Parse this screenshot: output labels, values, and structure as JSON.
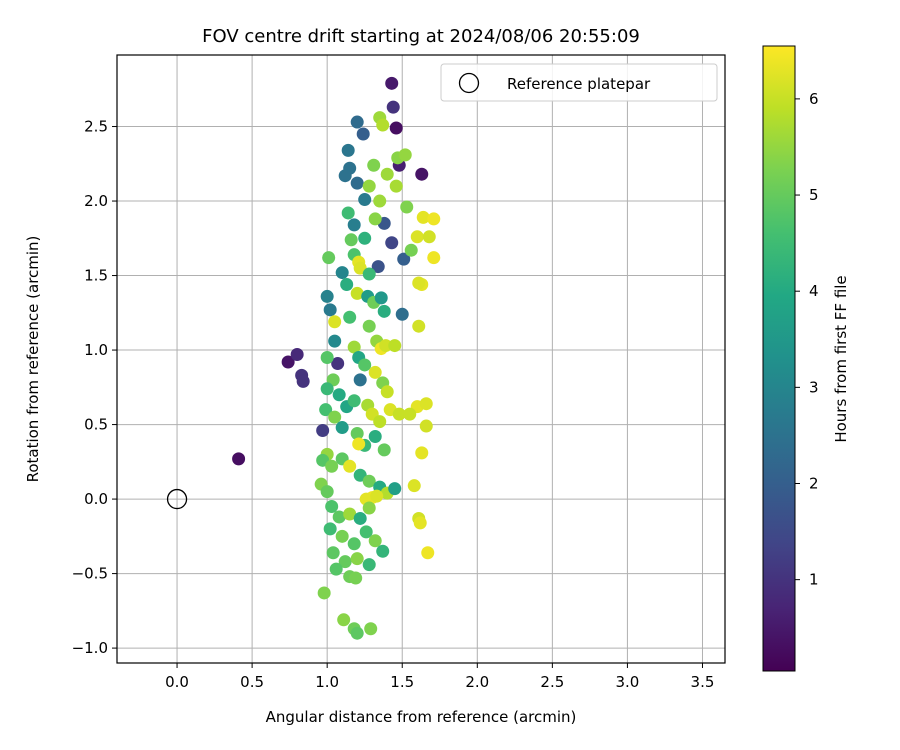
{
  "chart_data": {
    "type": "scatter",
    "title": "FOV centre drift starting at 2024/08/06 20:55:09",
    "xlabel": "Angular distance from reference (arcmin)",
    "ylabel": "Rotation from reference (arcmin)",
    "xlim": [
      -0.4,
      3.65
    ],
    "ylim": [
      -1.1,
      2.98
    ],
    "xticks": [
      0.0,
      0.5,
      1.0,
      1.5,
      2.0,
      2.5,
      3.0,
      3.5
    ],
    "yticks": [
      -1.0,
      -0.5,
      0.0,
      0.5,
      1.0,
      1.5,
      2.0,
      2.5
    ],
    "x_tick_labels": [
      "0.0",
      "0.5",
      "1.0",
      "1.5",
      "2.0",
      "2.5",
      "3.0",
      "3.5"
    ],
    "y_tick_labels": [
      "−1.0",
      "−0.5",
      "0.0",
      "0.5",
      "1.0",
      "1.5",
      "2.0",
      "2.5"
    ],
    "grid": true,
    "legend": {
      "position": "upper-right",
      "entries": [
        "Reference platepar"
      ]
    },
    "reference_point": {
      "x": 0.0,
      "y": 0.0
    },
    "colorbar": {
      "label": "Hours from first FF file",
      "range": [
        0.05,
        6.55
      ],
      "ticks": [
        1,
        2,
        3,
        4,
        5,
        6
      ],
      "tick_labels": [
        "1",
        "2",
        "3",
        "4",
        "5",
        "6"
      ],
      "colormap": "viridis"
    },
    "points": [
      [
        0.41,
        0.27,
        0.3
      ],
      [
        0.74,
        0.92,
        0.4
      ],
      [
        0.8,
        0.97,
        0.8
      ],
      [
        0.83,
        0.83,
        1.0
      ],
      [
        0.84,
        0.79,
        1.0
      ],
      [
        0.97,
        0.46,
        1.2
      ],
      [
        1.43,
        2.79,
        0.5
      ],
      [
        1.46,
        2.49,
        0.3
      ],
      [
        1.44,
        2.63,
        1.0
      ],
      [
        1.63,
        2.18,
        0.4
      ],
      [
        1.48,
        2.24,
        0.6
      ],
      [
        1.2,
        2.53,
        2.3
      ],
      [
        1.24,
        2.45,
        2.0
      ],
      [
        1.14,
        2.34,
        2.6
      ],
      [
        1.15,
        2.22,
        2.5
      ],
      [
        1.12,
        2.17,
        2.5
      ],
      [
        1.2,
        2.12,
        2.3
      ],
      [
        1.25,
        2.01,
        2.7
      ],
      [
        1.38,
        1.85,
        1.8
      ],
      [
        1.43,
        1.72,
        1.4
      ],
      [
        1.51,
        1.61,
        2.0
      ],
      [
        1.5,
        1.24,
        2.4
      ],
      [
        1.34,
        1.56,
        1.7
      ],
      [
        1.18,
        1.84,
        2.8
      ],
      [
        1.1,
        1.52,
        3.0
      ],
      [
        1.0,
        1.36,
        2.9
      ],
      [
        1.02,
        1.27,
        2.7
      ],
      [
        1.05,
        1.06,
        3.1
      ],
      [
        1.07,
        0.91,
        1.0
      ],
      [
        1.22,
        0.8,
        2.5
      ],
      [
        1.35,
        2.56,
        5.6
      ],
      [
        1.37,
        2.51,
        5.8
      ],
      [
        1.47,
        2.29,
        5.4
      ],
      [
        1.52,
        2.31,
        5.5
      ],
      [
        1.31,
        2.24,
        5.3
      ],
      [
        1.4,
        2.18,
        5.6
      ],
      [
        1.28,
        2.1,
        5.5
      ],
      [
        1.46,
        2.1,
        5.7
      ],
      [
        1.35,
        2.0,
        5.6
      ],
      [
        1.53,
        1.96,
        5.3
      ],
      [
        1.32,
        1.88,
        5.4
      ],
      [
        1.14,
        1.92,
        4.5
      ],
      [
        1.56,
        1.67,
        5.2
      ],
      [
        1.25,
        1.75,
        4.2
      ],
      [
        1.16,
        1.74,
        5.0
      ],
      [
        1.01,
        1.62,
        5.0
      ],
      [
        1.18,
        1.64,
        4.7
      ],
      [
        1.21,
        1.59,
        6.3
      ],
      [
        1.22,
        1.55,
        6.2
      ],
      [
        1.28,
        1.51,
        4.4
      ],
      [
        1.13,
        1.44,
        4.1
      ],
      [
        1.2,
        1.38,
        6.0
      ],
      [
        1.27,
        1.36,
        3.6
      ],
      [
        1.31,
        1.32,
        5.1
      ],
      [
        1.36,
        1.35,
        3.5
      ],
      [
        1.38,
        1.26,
        4.1
      ],
      [
        1.05,
        1.19,
        6.2
      ],
      [
        1.15,
        1.22,
        4.6
      ],
      [
        1.28,
        1.16,
        5.2
      ],
      [
        1.33,
        1.06,
        5.5
      ],
      [
        1.36,
        1.01,
        6.4
      ],
      [
        1.39,
        1.03,
        6.1
      ],
      [
        1.45,
        1.03,
        5.9
      ],
      [
        1.18,
        1.02,
        5.6
      ],
      [
        1.21,
        0.95,
        3.9
      ],
      [
        1.25,
        0.9,
        4.8
      ],
      [
        1.32,
        0.85,
        6.2
      ],
      [
        1.37,
        0.78,
        5.3
      ],
      [
        1.4,
        0.72,
        6.0
      ],
      [
        1.0,
        0.95,
        4.8
      ],
      [
        1.04,
        0.8,
        5.1
      ],
      [
        1.0,
        0.74,
        4.4
      ],
      [
        1.08,
        0.7,
        4.0
      ],
      [
        0.99,
        0.6,
        4.6
      ],
      [
        1.05,
        0.55,
        5.3
      ],
      [
        1.13,
        0.62,
        3.9
      ],
      [
        1.18,
        0.66,
        4.5
      ],
      [
        1.27,
        0.63,
        5.7
      ],
      [
        1.3,
        0.57,
        6.1
      ],
      [
        1.35,
        0.52,
        5.9
      ],
      [
        1.42,
        0.6,
        6.2
      ],
      [
        1.48,
        0.57,
        6.0
      ],
      [
        1.1,
        0.48,
        3.6
      ],
      [
        1.2,
        0.44,
        5.0
      ],
      [
        1.25,
        0.36,
        4.4
      ],
      [
        1.21,
        0.37,
        6.4
      ],
      [
        1.32,
        0.42,
        4.1
      ],
      [
        1.38,
        0.33,
        5.0
      ],
      [
        1.0,
        0.3,
        5.5
      ],
      [
        0.97,
        0.26,
        4.8
      ],
      [
        1.03,
        0.22,
        5.2
      ],
      [
        1.1,
        0.27,
        4.9
      ],
      [
        1.15,
        0.22,
        6.3
      ],
      [
        1.22,
        0.16,
        4.3
      ],
      [
        1.28,
        0.12,
        5.1
      ],
      [
        1.35,
        0.08,
        4.0
      ],
      [
        1.4,
        0.04,
        5.8
      ],
      [
        1.45,
        0.07,
        3.7
      ],
      [
        1.3,
        0.01,
        6.4
      ],
      [
        1.26,
        0.0,
        6.3
      ],
      [
        1.33,
        0.02,
        6.2
      ],
      [
        0.96,
        0.1,
        5.3
      ],
      [
        1.0,
        0.05,
        5.0
      ],
      [
        1.03,
        -0.05,
        4.7
      ],
      [
        1.08,
        -0.12,
        4.9
      ],
      [
        1.15,
        -0.1,
        5.6
      ],
      [
        1.22,
        -0.13,
        4.1
      ],
      [
        1.28,
        -0.06,
        5.4
      ],
      [
        1.02,
        -0.2,
        4.5
      ],
      [
        1.1,
        -0.25,
        5.2
      ],
      [
        1.18,
        -0.3,
        4.8
      ],
      [
        1.26,
        -0.22,
        4.6
      ],
      [
        1.32,
        -0.28,
        5.3
      ],
      [
        1.37,
        -0.35,
        4.3
      ],
      [
        1.04,
        -0.36,
        4.9
      ],
      [
        1.12,
        -0.42,
        5.0
      ],
      [
        1.2,
        -0.4,
        5.4
      ],
      [
        1.28,
        -0.44,
        4.4
      ],
      [
        1.06,
        -0.47,
        4.8
      ],
      [
        1.15,
        -0.52,
        5.1
      ],
      [
        1.19,
        -0.53,
        5.2
      ],
      [
        0.98,
        -0.63,
        5.3
      ],
      [
        1.11,
        -0.81,
        5.4
      ],
      [
        1.18,
        -0.87,
        5.1
      ],
      [
        1.2,
        -0.9,
        4.9
      ],
      [
        1.29,
        -0.87,
        5.3
      ],
      [
        1.64,
        1.89,
        6.3
      ],
      [
        1.71,
        1.88,
        6.4
      ],
      [
        1.6,
        1.76,
        6.2
      ],
      [
        1.68,
        1.76,
        6.1
      ],
      [
        1.71,
        1.62,
        6.4
      ],
      [
        1.63,
        1.44,
        6.3
      ],
      [
        1.61,
        1.45,
        6.2
      ],
      [
        1.61,
        1.16,
        6.1
      ],
      [
        1.6,
        0.62,
        6.3
      ],
      [
        1.66,
        0.64,
        6.2
      ],
      [
        1.55,
        0.57,
        6.0
      ],
      [
        1.66,
        0.49,
        6.1
      ],
      [
        1.63,
        0.31,
        6.3
      ],
      [
        1.58,
        0.09,
        6.2
      ],
      [
        1.61,
        -0.13,
        6.1
      ],
      [
        1.62,
        -0.16,
        6.3
      ],
      [
        1.67,
        -0.36,
        6.4
      ]
    ]
  }
}
